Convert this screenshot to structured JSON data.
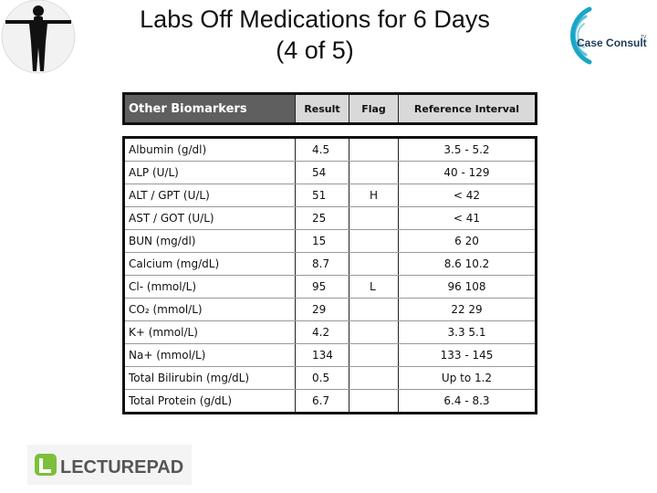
{
  "slide": {
    "title_line1": "Labs Off Medications for 6 Days",
    "title_line2": "(4 of 5)"
  },
  "logos": {
    "case_consult": "Case Consult",
    "case_consult_tm": "TV",
    "lecturepad": "LECTUREPAD"
  },
  "table": {
    "columns": [
      "Other Biomarkers",
      "Result",
      "Flag",
      "Reference Interval"
    ],
    "rows": [
      {
        "name": "Albumin (g/dl)",
        "result": "4.5",
        "flag": "",
        "ref": "3.5 - 5.2"
      },
      {
        "name": "ALP (U/L)",
        "result": "54",
        "flag": "",
        "ref": "40 - 129"
      },
      {
        "name": "ALT / GPT (U/L)",
        "result": "51",
        "flag": "H",
        "ref": "< 42"
      },
      {
        "name": "AST / GOT (U/L)",
        "result": "25",
        "flag": "",
        "ref": "< 41"
      },
      {
        "name": "BUN (mg/dl)",
        "result": "15",
        "flag": "",
        "ref": "6   20"
      },
      {
        "name": "Calcium (mg/dL)",
        "result": "8.7",
        "flag": "",
        "ref": "8.6   10.2"
      },
      {
        "name": "Cl- (mmol/L)",
        "result": "95",
        "flag": "L",
        "ref": "96   108"
      },
      {
        "name": "CO₂ (mmol/L)",
        "result": "29",
        "flag": "",
        "ref": "22   29"
      },
      {
        "name": "K+ (mmol/L)",
        "result": "4.2",
        "flag": "",
        "ref": "3.3   5.1"
      },
      {
        "name": "Na+ (mmol/L)",
        "result": "134",
        "flag": "",
        "ref": "133 - 145"
      },
      {
        "name": "Total Bilirubin (mg/dL)",
        "result": "0.5",
        "flag": "",
        "ref": "Up to 1.2"
      },
      {
        "name": "Total Protein (g/dL)",
        "result": "6.7",
        "flag": "",
        "ref": "6.4 - 8.3"
      }
    ]
  },
  "colors": {
    "header_dark": "#5f5f5f",
    "header_light": "#d9d9d9",
    "case_consult_teal": "#1aa6c8",
    "lecturepad_green": "#7dbf3a"
  }
}
